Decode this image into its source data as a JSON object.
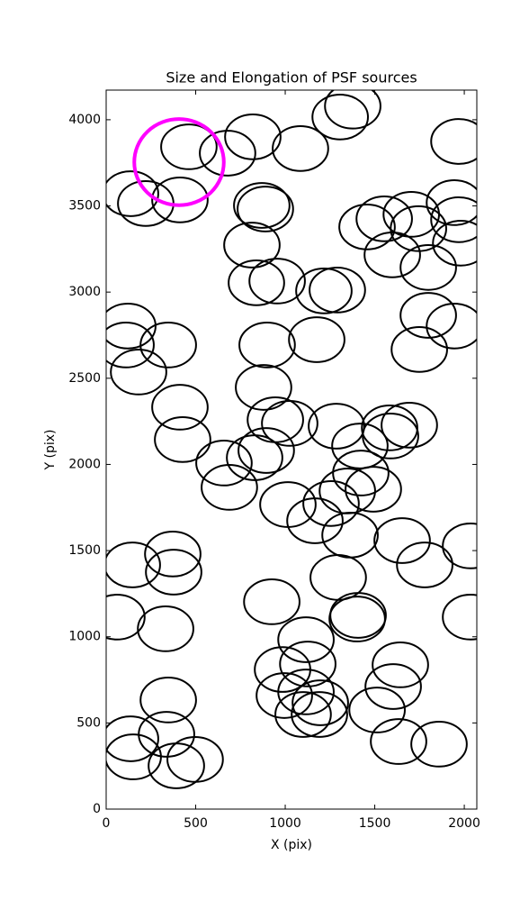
{
  "chart_data": {
    "type": "scatter",
    "title": "Size and Elongation of PSF sources",
    "x_label": "X (pix)",
    "y_label": "Y (pix)",
    "xlim": [
      0,
      2070
    ],
    "ylim": [
      0,
      4172
    ],
    "xticks": [
      0,
      500,
      1000,
      1500,
      2000
    ],
    "yticks": [
      0,
      500,
      1000,
      1500,
      2000,
      2500,
      3000,
      3500,
      4000
    ],
    "series": [
      {
        "color": "#000000",
        "width": 310,
        "height": 260,
        "x": [
          136,
          221,
          412,
          462,
          678,
          819,
          1085,
          1307,
          1377,
          1970,
          869,
          889,
          814,
          839,
          955,
          1216,
          1291,
          1457,
          1553,
          1704,
          1744,
          1598,
          1799,
          1945,
          1970,
          1980,
          121,
          111,
          181,
          347,
          899,
          1176,
          879,
          1749,
          1799,
          1945,
          412,
          427,
          658,
          829,
          894,
          945,
          1025,
          1286,
          688,
          1015,
          1166,
          1256,
          1347,
          1422,
          1417,
          1492,
          1583,
          1693,
          1588,
          146,
          372,
          377,
          1362,
          1653,
          1779,
          2035,
          1296,
          925,
          60,
          332,
          1407,
          1402,
          2035,
          1116,
          1126,
          985,
          995,
          1116,
          1100,
          1191,
          1196,
          1643,
          1603,
          1513,
          1633,
          1859,
          347,
          337,
          136,
          151,
          392,
          497
        ],
        "y": [
          3571,
          3514,
          3535,
          3843,
          3806,
          3901,
          3833,
          4016,
          4079,
          3874,
          3503,
          3482,
          3273,
          3054,
          3064,
          3007,
          3012,
          3378,
          3425,
          3451,
          3368,
          3216,
          3143,
          3519,
          3420,
          3284,
          2803,
          2693,
          2536,
          2693,
          2693,
          2724,
          2447,
          2667,
          2865,
          2803,
          2332,
          2144,
          2008,
          2039,
          2081,
          2259,
          2238,
          2222,
          1867,
          1767,
          1673,
          1773,
          1846,
          1950,
          2107,
          1856,
          2212,
          2228,
          2165,
          1417,
          1480,
          1375,
          1590,
          1558,
          1417,
          1527,
          1344,
          1203,
          1114,
          1046,
          1124,
          1103,
          1114,
          983,
          842,
          810,
          659,
          680,
          549,
          549,
          617,
          837,
          711,
          575,
          392,
          377,
          633,
          434,
          408,
          303,
          251,
          288
        ]
      },
      {
        "color": "#ff00ff",
        "width": 500,
        "height": 500,
        "x": [
          407
        ],
        "y": [
          3754
        ]
      }
    ]
  }
}
